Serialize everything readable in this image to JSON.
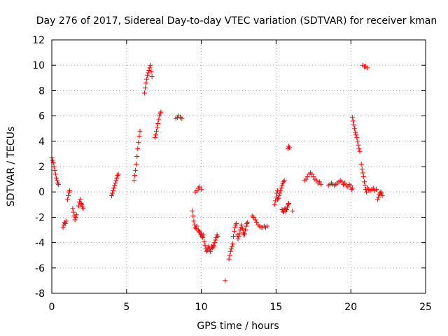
{
  "chart_data": {
    "type": "scatter",
    "title": "Day 276 of 2017, Sidereal Day-to-day VTEC variation (SDTVAR) for receiver kman",
    "xlabel": "GPS time / hours",
    "ylabel": "SDTVAR / TECUs",
    "xlim": [
      0,
      25
    ],
    "ylim": [
      -8,
      12
    ],
    "xticks": [
      0,
      5,
      10,
      15,
      20,
      25
    ],
    "yticks": [
      -8,
      -6,
      -4,
      -2,
      0,
      2,
      4,
      6,
      8,
      10,
      12
    ],
    "grid": true,
    "marker": "+",
    "color": "#ff0000",
    "series": [
      {
        "name": "SDTVAR",
        "points": [
          [
            0.0,
            2.7
          ],
          [
            0.05,
            2.5
          ],
          [
            0.1,
            2.3
          ],
          [
            0.15,
            2.0
          ],
          [
            0.2,
            1.7
          ],
          [
            0.25,
            1.4
          ],
          [
            0.3,
            1.1
          ],
          [
            0.35,
            0.9
          ],
          [
            0.4,
            0.7
          ],
          [
            0.45,
            0.6
          ],
          [
            0.75,
            -2.8
          ],
          [
            0.8,
            -2.6
          ],
          [
            0.85,
            -2.4
          ],
          [
            0.9,
            -2.5
          ],
          [
            0.95,
            -2.3
          ],
          [
            1.05,
            -0.6
          ],
          [
            1.1,
            -0.3
          ],
          [
            1.15,
            0.0
          ],
          [
            1.2,
            0.1
          ],
          [
            1.4,
            -1.3
          ],
          [
            1.45,
            -1.6
          ],
          [
            1.5,
            -1.9
          ],
          [
            1.55,
            -2.2
          ],
          [
            1.6,
            -2.0
          ],
          [
            1.65,
            -1.8
          ],
          [
            1.8,
            -1.1
          ],
          [
            1.85,
            -0.8
          ],
          [
            1.9,
            -0.6
          ],
          [
            1.95,
            -0.9
          ],
          [
            2.0,
            -1.0
          ],
          [
            2.05,
            -1.2
          ],
          [
            2.1,
            -1.3
          ],
          [
            4.0,
            -0.3
          ],
          [
            4.05,
            -0.1
          ],
          [
            4.1,
            0.1
          ],
          [
            4.15,
            0.3
          ],
          [
            4.2,
            0.5
          ],
          [
            4.25,
            0.7
          ],
          [
            4.3,
            0.9
          ],
          [
            4.35,
            1.1
          ],
          [
            4.4,
            1.3
          ],
          [
            4.45,
            1.4
          ],
          [
            5.5,
            0.9
          ],
          [
            5.55,
            1.3
          ],
          [
            5.6,
            1.7
          ],
          [
            5.65,
            2.2
          ],
          [
            5.7,
            2.8
          ],
          [
            5.75,
            3.4
          ],
          [
            5.8,
            3.9
          ],
          [
            5.85,
            4.4
          ],
          [
            5.9,
            4.8
          ],
          [
            6.2,
            7.8
          ],
          [
            6.25,
            8.2
          ],
          [
            6.3,
            8.6
          ],
          [
            6.35,
            8.9
          ],
          [
            6.4,
            9.2
          ],
          [
            6.45,
            9.4
          ],
          [
            6.5,
            9.6
          ],
          [
            6.55,
            9.8
          ],
          [
            6.6,
            10.0
          ],
          [
            6.65,
            9.5
          ],
          [
            6.7,
            9.1
          ],
          [
            6.9,
            4.3
          ],
          [
            6.95,
            4.5
          ],
          [
            7.0,
            4.8
          ],
          [
            7.05,
            5.1
          ],
          [
            7.1,
            5.4
          ],
          [
            7.15,
            5.7
          ],
          [
            7.2,
            6.0
          ],
          [
            7.25,
            6.2
          ],
          [
            7.3,
            6.3
          ],
          [
            8.3,
            5.8
          ],
          [
            8.4,
            5.9
          ],
          [
            8.5,
            6.0
          ],
          [
            8.6,
            5.9
          ],
          [
            8.7,
            5.8
          ],
          [
            9.4,
            -1.5
          ],
          [
            9.45,
            -1.9
          ],
          [
            9.5,
            -2.3
          ],
          [
            9.55,
            -2.6
          ],
          [
            9.6,
            -2.8
          ],
          [
            9.65,
            -2.9
          ],
          [
            9.7,
            -2.7
          ],
          [
            9.6,
            0.0
          ],
          [
            9.7,
            0.1
          ],
          [
            9.8,
            0.3
          ],
          [
            9.9,
            0.4
          ],
          [
            10.0,
            0.2
          ],
          [
            9.8,
            -3.0
          ],
          [
            9.85,
            -3.1
          ],
          [
            9.9,
            -3.2
          ],
          [
            9.95,
            -3.4
          ],
          [
            10.0,
            -3.3
          ],
          [
            10.05,
            -3.5
          ],
          [
            10.1,
            -3.6
          ],
          [
            10.15,
            -3.4
          ],
          [
            10.2,
            -3.9
          ],
          [
            10.25,
            -4.2
          ],
          [
            10.3,
            -4.5
          ],
          [
            10.35,
            -4.7
          ],
          [
            10.4,
            -4.6
          ],
          [
            10.45,
            -4.4
          ],
          [
            10.5,
            -4.3
          ],
          [
            10.55,
            -4.5
          ],
          [
            10.6,
            -4.7
          ],
          [
            10.65,
            -4.5
          ],
          [
            10.7,
            -4.3
          ],
          [
            10.75,
            -4.4
          ],
          [
            10.8,
            -4.2
          ],
          [
            10.85,
            -4.3
          ],
          [
            10.9,
            -4.0
          ],
          [
            10.95,
            -3.8
          ],
          [
            11.0,
            -3.6
          ],
          [
            11.05,
            -3.4
          ],
          [
            11.1,
            -3.5
          ],
          [
            11.6,
            -7.0
          ],
          [
            11.85,
            -5.3
          ],
          [
            11.9,
            -5.0
          ],
          [
            11.95,
            -4.7
          ],
          [
            12.0,
            -4.5
          ],
          [
            12.05,
            -4.3
          ],
          [
            12.1,
            -4.1
          ],
          [
            12.15,
            -3.5
          ],
          [
            12.2,
            -3.1
          ],
          [
            12.25,
            -2.8
          ],
          [
            12.3,
            -2.6
          ],
          [
            12.35,
            -2.5
          ],
          [
            12.4,
            -3.4
          ],
          [
            12.45,
            -3.7
          ],
          [
            12.5,
            -3.5
          ],
          [
            12.55,
            -3.3
          ],
          [
            12.6,
            -3.0
          ],
          [
            12.65,
            -2.8
          ],
          [
            12.7,
            -2.6
          ],
          [
            12.75,
            -2.9
          ],
          [
            12.8,
            -3.2
          ],
          [
            12.85,
            -3.4
          ],
          [
            12.9,
            -3.3
          ],
          [
            12.95,
            -3.0
          ],
          [
            13.0,
            -2.7
          ],
          [
            13.05,
            -2.5
          ],
          [
            13.1,
            -2.4
          ],
          [
            13.4,
            -1.9
          ],
          [
            13.5,
            -2.0
          ],
          [
            13.6,
            -2.2
          ],
          [
            13.7,
            -2.4
          ],
          [
            13.8,
            -2.6
          ],
          [
            13.9,
            -2.7
          ],
          [
            14.0,
            -2.8
          ],
          [
            14.1,
            -2.8
          ],
          [
            14.2,
            -2.7
          ],
          [
            14.3,
            -2.8
          ],
          [
            14.4,
            -2.7
          ],
          [
            14.9,
            -1.0
          ],
          [
            14.95,
            -0.7
          ],
          [
            15.0,
            -0.4
          ],
          [
            15.05,
            -0.1
          ],
          [
            15.1,
            0.1
          ],
          [
            15.1,
            -0.6
          ],
          [
            15.15,
            -0.5
          ],
          [
            15.2,
            -0.3
          ],
          [
            15.25,
            -0.1
          ],
          [
            15.3,
            0.1
          ],
          [
            15.35,
            0.3
          ],
          [
            15.4,
            0.5
          ],
          [
            15.45,
            0.7
          ],
          [
            15.5,
            0.8
          ],
          [
            15.55,
            0.9
          ],
          [
            15.4,
            -1.4
          ],
          [
            15.45,
            -1.5
          ],
          [
            15.5,
            -1.6
          ],
          [
            15.55,
            -1.4
          ],
          [
            15.6,
            -1.3
          ],
          [
            15.65,
            -1.5
          ],
          [
            15.7,
            -1.4
          ],
          [
            15.75,
            -1.2
          ],
          [
            15.8,
            -1.0
          ],
          [
            15.85,
            -0.9
          ],
          [
            15.8,
            3.4
          ],
          [
            15.85,
            3.6
          ],
          [
            15.9,
            3.5
          ],
          [
            16.1,
            -1.5
          ],
          [
            16.9,
            0.9
          ],
          [
            17.0,
            1.0
          ],
          [
            17.1,
            1.2
          ],
          [
            17.2,
            1.4
          ],
          [
            17.3,
            1.5
          ],
          [
            17.4,
            1.4
          ],
          [
            17.5,
            1.2
          ],
          [
            17.6,
            1.0
          ],
          [
            17.7,
            0.9
          ],
          [
            17.8,
            0.7
          ],
          [
            17.9,
            0.8
          ],
          [
            18.0,
            0.6
          ],
          [
            18.5,
            0.5
          ],
          [
            18.6,
            0.6
          ],
          [
            18.7,
            0.7
          ],
          [
            18.8,
            0.6
          ],
          [
            18.9,
            0.5
          ],
          [
            19.0,
            0.6
          ],
          [
            19.1,
            0.7
          ],
          [
            19.2,
            0.8
          ],
          [
            19.3,
            0.9
          ],
          [
            19.4,
            0.8
          ],
          [
            19.5,
            0.6
          ],
          [
            19.6,
            0.7
          ],
          [
            19.7,
            0.5
          ],
          [
            19.8,
            0.4
          ],
          [
            19.9,
            0.6
          ],
          [
            20.0,
            0.5
          ],
          [
            20.05,
            0.2
          ],
          [
            20.1,
            0.3
          ],
          [
            20.1,
            5.9
          ],
          [
            20.15,
            5.6
          ],
          [
            20.2,
            5.3
          ],
          [
            20.25,
            5.0
          ],
          [
            20.3,
            4.7
          ],
          [
            20.35,
            4.5
          ],
          [
            20.4,
            4.3
          ],
          [
            20.45,
            4.0
          ],
          [
            20.5,
            3.7
          ],
          [
            20.55,
            3.4
          ],
          [
            20.6,
            3.2
          ],
          [
            20.7,
            2.2
          ],
          [
            20.75,
            1.8
          ],
          [
            20.8,
            1.5
          ],
          [
            20.85,
            1.2
          ],
          [
            20.9,
            0.8
          ],
          [
            20.95,
            0.5
          ],
          [
            21.0,
            0.2
          ],
          [
            21.05,
            0.0
          ],
          [
            21.1,
            0.3
          ],
          [
            21.2,
            0.2
          ],
          [
            21.3,
            0.1
          ],
          [
            21.4,
            0.2
          ],
          [
            21.5,
            0.3
          ],
          [
            21.6,
            0.1
          ],
          [
            21.7,
            0.2
          ],
          [
            21.8,
            -0.6
          ],
          [
            21.85,
            -0.4
          ],
          [
            21.9,
            -0.2
          ],
          [
            21.95,
            -0.1
          ],
          [
            22.0,
            0.0
          ],
          [
            22.05,
            -0.1
          ],
          [
            22.1,
            -0.3
          ],
          [
            20.8,
            10.0
          ],
          [
            20.9,
            9.9
          ],
          [
            21.0,
            9.9
          ],
          [
            21.1,
            9.8
          ]
        ]
      }
    ]
  }
}
